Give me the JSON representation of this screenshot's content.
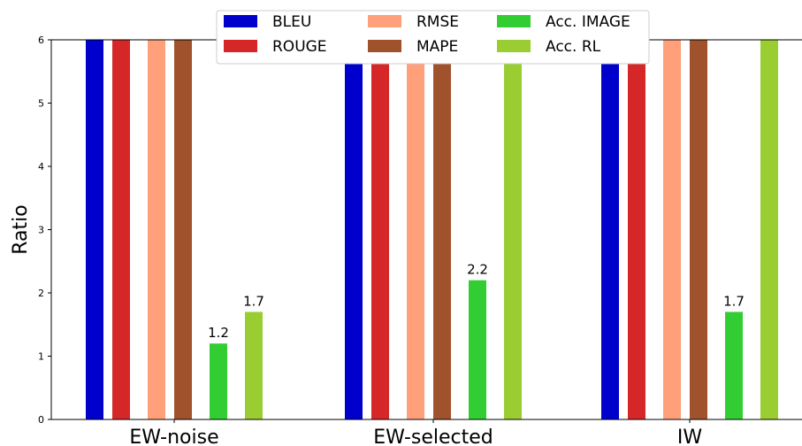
{
  "chart_data": {
    "type": "bar",
    "categories": [
      "EW-noise",
      "EW-selected",
      "IW"
    ],
    "ylabel": "Ratio",
    "ylim": [
      0,
      6
    ],
    "yticks": [
      0,
      1,
      2,
      3,
      4,
      5,
      6
    ],
    "clipped_at_top": true,
    "legend_position": "top-center",
    "series": [
      {
        "name": "BLEU",
        "color": "#0000cd",
        "values": [
          6,
          6,
          6
        ],
        "labels": [
          "",
          "",
          ""
        ]
      },
      {
        "name": "ROUGE",
        "color": "#d62728",
        "values": [
          6,
          6,
          6
        ],
        "labels": [
          "",
          "",
          ""
        ]
      },
      {
        "name": "RMSE",
        "color": "#ffa07a",
        "values": [
          6,
          6,
          6
        ],
        "labels": [
          "",
          "",
          ""
        ]
      },
      {
        "name": "MAPE",
        "color": "#a0522d",
        "values": [
          6,
          6,
          6
        ],
        "labels": [
          "",
          "",
          ""
        ]
      },
      {
        "name": "Acc. IMAGE",
        "color": "#32cd32",
        "values": [
          1.2,
          2.2,
          1.7
        ],
        "labels": [
          "1.2",
          "2.2",
          "1.7"
        ]
      },
      {
        "name": "Acc. RL",
        "color": "#9acd32",
        "values": [
          1.7,
          6,
          6
        ],
        "labels": [
          "1.7",
          "",
          ""
        ]
      }
    ]
  }
}
